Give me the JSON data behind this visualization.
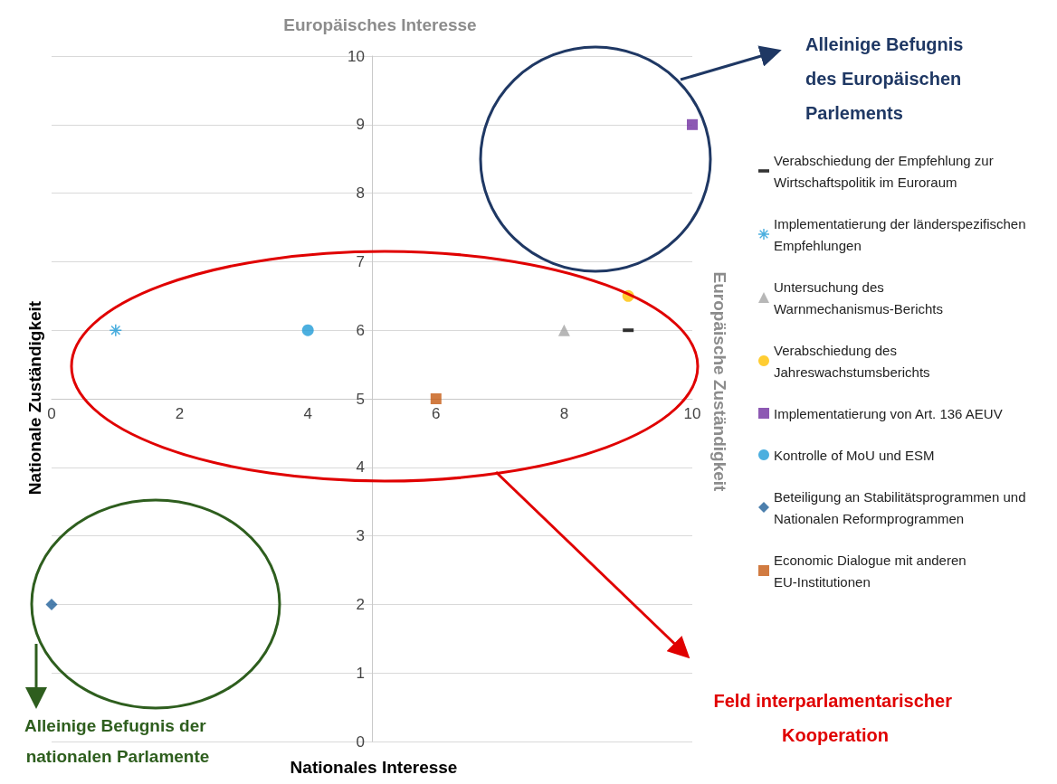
{
  "chart_data": {
    "type": "scatter",
    "ylabel": "Europäisches Interesse",
    "annotations": [
      "Nationale Zuständigkeit",
      "Nationales Interesse",
      "Alleinige Befugnis des Europäischen Parlements",
      "Feld interparlamentarischer Kooperation",
      "Alleinige Befugnis der nationalen Parlamente",
      "Europäische Zuständigkeit"
    ],
    "xlim": [
      0,
      10
    ],
    "xticks": [
      0,
      2,
      4,
      6,
      8,
      10
    ],
    "ylim": [
      0,
      10
    ],
    "yticks": [
      0,
      1,
      2,
      3,
      4,
      5,
      6,
      7,
      8,
      9,
      10
    ],
    "grid": "y",
    "legend": "right",
    "series": [
      {
        "name": "Verabschiedung der Empfehlung zur Wirtschaftspolitik im Euroraum",
        "color": "#000000",
        "x": [
          9
        ],
        "values": [
          6
        ]
      },
      {
        "name": "Implementatierung der länderspezifischen Empfehlungen",
        "color": "#1f9bd7",
        "marker": "asterisk",
        "x": [
          1
        ],
        "values": [
          6
        ]
      },
      {
        "name": "Untersuchung des Warnmechanismus-Berichts",
        "color": "#a5a5a5",
        "marker": "triangle",
        "x": [
          8
        ],
        "values": [
          6
        ]
      },
      {
        "name": "Verabschiedung des Jahreswachstumsberichts",
        "color": "#ffc000",
        "marker": "circle",
        "x": [
          9
        ],
        "values": [
          6.5
        ]
      },
      {
        "name": "Implementatierung von Art. 136 AEUV",
        "color": "#7030a0",
        "marker": "square",
        "x": [
          10
        ],
        "values": [
          9
        ]
      },
      {
        "name": "Kontrolle of MoU und ESM",
        "color": "#1f9bd7",
        "marker": "circle",
        "x": [
          4
        ],
        "values": [
          6
        ]
      },
      {
        "name": "Beteiligung an Stabilitätsprogrammen und Nationalen Reformprogrammen",
        "color": "#1f5f99",
        "marker": "diamond",
        "x": [
          0
        ],
        "values": [
          2
        ]
      },
      {
        "name": "Economic Dialogue mit anderen EU-Institutionen",
        "color": "#c55a11",
        "marker": "square",
        "x": [
          6
        ],
        "values": [
          5
        ]
      }
    ]
  }
}
